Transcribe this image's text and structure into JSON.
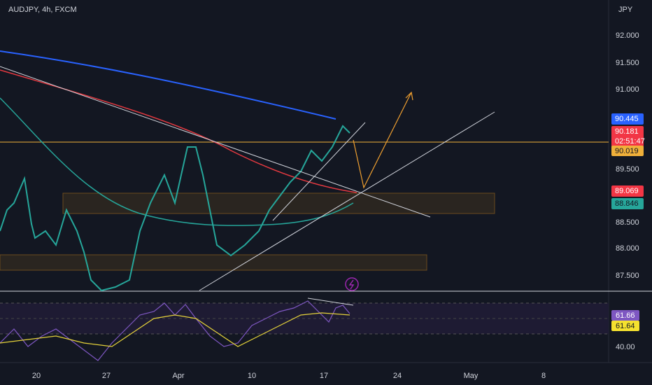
{
  "header": {
    "symbol": "AUDJPY, 4h, FXCM",
    "currency": "JPY"
  },
  "price_axis": {
    "labels": [
      "92.000",
      "91.500",
      "91.000",
      "89.500",
      "88.500",
      "88.000",
      "87.500"
    ]
  },
  "price_tags": {
    "ma_blue": "90.445",
    "last": "90.181",
    "countdown": "02:51:47",
    "line": "90.019",
    "ma_red": "89.069",
    "ma_teal": "88.846"
  },
  "rsi_axis": {
    "rsi": "61.66",
    "rsi_ma": "61.64",
    "level": "40.00"
  },
  "time_axis": [
    "20",
    "27",
    "Apr",
    "10",
    "17",
    "24",
    "May",
    "8"
  ]
}
